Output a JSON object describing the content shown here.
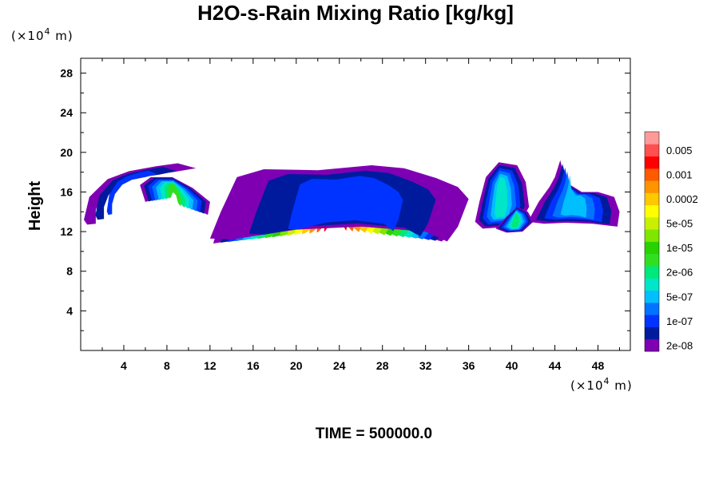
{
  "chart_data": {
    "type": "heatmap",
    "title": "H2O-s-Rain Mixing Ratio [kg/kg]",
    "ylabel": "Height",
    "xunit_prefix": "(×10",
    "unit_exp": "4",
    "unit_suffix": " m)",
    "yunit_prefix": "(×10",
    "footer": "TIME = 500000.0",
    "xlim": [
      0,
      51
    ],
    "ylim": [
      0,
      29.5
    ],
    "xticks": [
      "4",
      "8",
      "12",
      "16",
      "20",
      "24",
      "28",
      "32",
      "36",
      "40",
      "44",
      "48"
    ],
    "yticks": [
      "4",
      "8",
      "12",
      "16",
      "20",
      "24",
      "28"
    ],
    "colorbar": {
      "levels": [
        {
          "color": "#7f00b3",
          "label": "2e-08"
        },
        {
          "color": "#001a9e",
          "label": ""
        },
        {
          "color": "#0033ff",
          "label": "1e-07"
        },
        {
          "color": "#0073ff",
          "label": ""
        },
        {
          "color": "#00bfff",
          "label": "5e-07"
        },
        {
          "color": "#00e6c8",
          "label": ""
        },
        {
          "color": "#00e87a",
          "label": "2e-06"
        },
        {
          "color": "#30e020",
          "label": ""
        },
        {
          "color": "#28d200",
          "label": "1e-05"
        },
        {
          "color": "#7fe600",
          "label": ""
        },
        {
          "color": "#c8f000",
          "label": "5e-05"
        },
        {
          "color": "#ffff00",
          "label": ""
        },
        {
          "color": "#ffc800",
          "label": "0.0002"
        },
        {
          "color": "#ff9400",
          "label": ""
        },
        {
          "color": "#ff5a00",
          "label": "0.001"
        },
        {
          "color": "#ff0000",
          "label": ""
        },
        {
          "color": "#ff5050",
          "label": "0.005"
        },
        {
          "color": "#ff9a9a",
          "label": ""
        }
      ]
    },
    "features": [
      {
        "name": "main-anvil",
        "points": [
          [
            12.5,
            11.5
          ],
          [
            14,
            12.5
          ],
          [
            17,
            14.5
          ],
          [
            20,
            16.5
          ],
          [
            24,
            17.8
          ],
          [
            28,
            17.5
          ],
          [
            31,
            16.5
          ],
          [
            33,
            15.5
          ],
          [
            34,
            13.5
          ],
          [
            34.5,
            12
          ],
          [
            33.5,
            11
          ],
          [
            31,
            11.8
          ],
          [
            28,
            12.3
          ],
          [
            24,
            12.5
          ],
          [
            20,
            12.2
          ],
          [
            16,
            11.8
          ],
          [
            13.5,
            11
          ],
          [
            12.3,
            10.8
          ]
        ],
        "levels": 16
      },
      {
        "name": "upper-cloud",
        "points": [
          [
            12,
            11.3
          ],
          [
            13,
            14
          ],
          [
            14.5,
            17.5
          ],
          [
            17,
            18.3
          ],
          [
            22,
            18.2
          ],
          [
            27,
            18.7
          ],
          [
            30,
            18.4
          ],
          [
            33,
            17.4
          ],
          [
            35,
            16.5
          ],
          [
            36,
            15.3
          ],
          [
            35,
            12.5
          ],
          [
            34,
            11
          ],
          [
            32,
            12
          ],
          [
            26,
            12.5
          ],
          [
            20,
            12.2
          ],
          [
            14,
            11.2
          ]
        ],
        "levels": 3
      },
      {
        "name": "hook-left",
        "points": [
          [
            0.3,
            13.2
          ],
          [
            0.8,
            15.5
          ],
          [
            2.5,
            17.3
          ],
          [
            4.5,
            18.1
          ],
          [
            7,
            18.6
          ],
          [
            9,
            18.9
          ],
          [
            10.7,
            18.4
          ],
          [
            8.5,
            18
          ],
          [
            5.5,
            17.6
          ],
          [
            3.5,
            16.9
          ],
          [
            2,
            15.6
          ],
          [
            1.4,
            14.2
          ],
          [
            1.4,
            12.8
          ],
          [
            0.6,
            12.7
          ]
        ],
        "levels": 3
      },
      {
        "name": "curl-mid",
        "points": [
          [
            5.5,
            16.7
          ],
          [
            6.5,
            17.5
          ],
          [
            8.5,
            17.5
          ],
          [
            10.4,
            16.4
          ],
          [
            12,
            15
          ],
          [
            11.8,
            13.7
          ],
          [
            10.5,
            14.3
          ],
          [
            9.5,
            15.6
          ],
          [
            8,
            16.2
          ],
          [
            7,
            15.3
          ],
          [
            6,
            15
          ]
        ],
        "levels": 8
      },
      {
        "name": "right-cluster-a",
        "points": [
          [
            36.6,
            13
          ],
          [
            37,
            15
          ],
          [
            37.6,
            17.5
          ],
          [
            38.8,
            19
          ],
          [
            40.5,
            18.7
          ],
          [
            41.3,
            17
          ],
          [
            41.6,
            14.5
          ],
          [
            40.6,
            12.5
          ],
          [
            38.5,
            12.4
          ],
          [
            37.3,
            12.3
          ]
        ],
        "levels": 6
      },
      {
        "name": "right-cluster-b",
        "points": [
          [
            41.5,
            13
          ],
          [
            42.5,
            15
          ],
          [
            43.5,
            16.5
          ],
          [
            44,
            17.5
          ],
          [
            44.5,
            19.2
          ],
          [
            45,
            17
          ],
          [
            46.5,
            16
          ],
          [
            48,
            16
          ],
          [
            49.5,
            15.5
          ],
          [
            50,
            14
          ],
          [
            49.8,
            12.5
          ],
          [
            47.5,
            12.8
          ],
          [
            45,
            12.9
          ],
          [
            43,
            12.8
          ]
        ],
        "levels": 5
      },
      {
        "name": "right-blob-c",
        "points": [
          [
            38.5,
            12.3
          ],
          [
            39.5,
            13.5
          ],
          [
            40.5,
            14.5
          ],
          [
            41.5,
            14
          ],
          [
            42,
            13
          ],
          [
            41,
            12
          ],
          [
            39.5,
            11.9
          ]
        ],
        "levels": 7
      }
    ]
  }
}
